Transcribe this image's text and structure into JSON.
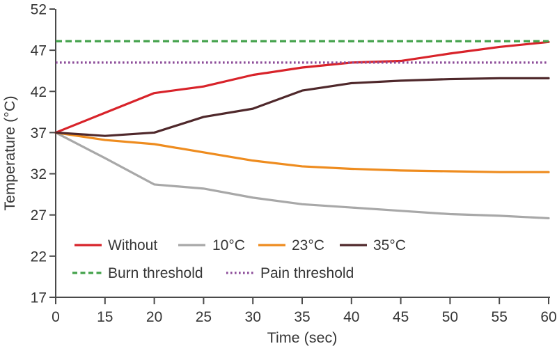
{
  "figure": {
    "background": "#ffffff",
    "text_color": "#363636",
    "axis_color": "#4a4a4a"
  },
  "chart_data": {
    "type": "line",
    "title": "",
    "xlabel": "Time (sec)",
    "ylabel": "Temperature (°C)",
    "x_categories": [
      0,
      15,
      20,
      25,
      30,
      35,
      40,
      45,
      50,
      55,
      60
    ],
    "x_scale": "categorical-even-spacing",
    "y_ticks": [
      17,
      22,
      27,
      32,
      37,
      42,
      47,
      52
    ],
    "ylim": [
      17,
      52
    ],
    "grid": false,
    "legend_position": "inside-bottom-left-two-rows",
    "series": [
      {
        "name": "Without",
        "color": "#d8232a",
        "style": "solid",
        "values": [
          37.0,
          39.4,
          41.8,
          42.6,
          44.0,
          44.9,
          45.5,
          45.7,
          46.6,
          47.4,
          48.0
        ]
      },
      {
        "name": "10°C",
        "color": "#a8a8a8",
        "style": "solid",
        "values": [
          37.0,
          33.9,
          30.7,
          30.2,
          29.1,
          28.3,
          27.9,
          27.5,
          27.1,
          26.9,
          26.6
        ]
      },
      {
        "name": "23°C",
        "color": "#ee8c1f",
        "style": "solid",
        "values": [
          37.0,
          36.1,
          35.6,
          34.6,
          33.6,
          32.9,
          32.6,
          32.4,
          32.3,
          32.2,
          32.2
        ]
      },
      {
        "name": "35°C",
        "color": "#4f282b",
        "style": "solid",
        "values": [
          37.0,
          36.6,
          37.0,
          38.9,
          39.9,
          42.1,
          43.0,
          43.3,
          43.5,
          43.6,
          43.6
        ]
      }
    ],
    "thresholds": [
      {
        "name": "Burn threshold",
        "color": "#43a24b",
        "style": "dashed",
        "value": 48.1
      },
      {
        "name": "Pain threshold",
        "color": "#8c4c99",
        "style": "dotted",
        "value": 45.5
      }
    ]
  }
}
